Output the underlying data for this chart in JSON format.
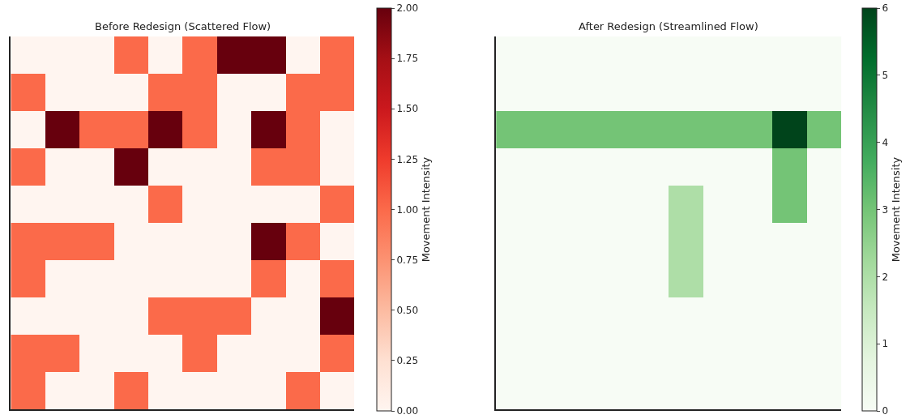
{
  "chart_data": [
    {
      "type": "heatmap",
      "title": "Before Redesign (Scattered Flow)",
      "clabel": "Movement Intensity",
      "categories": [
        null,
        null,
        null,
        null,
        null,
        null,
        null,
        null,
        null,
        null
      ],
      "y_categories": [
        null,
        null,
        null,
        null,
        null,
        null,
        null,
        null,
        null,
        null
      ],
      "cells": [
        [
          0,
          0,
          0,
          1,
          0,
          1,
          2,
          2,
          0,
          1
        ],
        [
          1,
          0,
          0,
          0,
          1,
          1,
          0,
          0,
          1,
          1
        ],
        [
          0,
          2,
          1,
          1,
          2,
          1,
          0,
          2,
          1,
          0
        ],
        [
          1,
          0,
          0,
          2,
          0,
          0,
          0,
          1,
          1,
          0
        ],
        [
          0,
          0,
          0,
          0,
          1,
          0,
          0,
          0,
          0,
          1
        ],
        [
          1,
          1,
          1,
          0,
          0,
          0,
          0,
          2,
          1,
          0
        ],
        [
          1,
          0,
          0,
          0,
          0,
          0,
          0,
          1,
          0,
          1
        ],
        [
          0,
          0,
          0,
          0,
          1,
          1,
          1,
          0,
          0,
          2
        ],
        [
          1,
          1,
          0,
          0,
          0,
          1,
          0,
          0,
          0,
          1
        ],
        [
          1,
          0,
          0,
          1,
          0,
          0,
          0,
          0,
          1,
          0
        ]
      ],
      "colors": [
        "#fff5f0",
        "#fee0d2",
        "#fcbba1",
        "#fc9272",
        "#fb6a4a",
        "#ef3b2c",
        "#cb181d",
        "#a50f15",
        "#67000d"
      ],
      "clim": [
        0,
        2
      ],
      "cticks": [
        {
          "value": 0,
          "label": "0.00"
        },
        0.25,
        {
          "value": 0.5,
          "label": "0.50"
        },
        0.75,
        {
          "value": 1,
          "label": "1.00"
        },
        1.25,
        {
          "value": 1.5,
          "label": "1.50"
        },
        1.75,
        {
          "value": 2,
          "label": "2.00"
        }
      ]
    },
    {
      "type": "heatmap",
      "title": "After Redesign (Streamlined Flow)",
      "clabel": "Movement Intensity",
      "categories": [
        null,
        null,
        null,
        null,
        null,
        null,
        null,
        null,
        null,
        null
      ],
      "y_categories": [
        null,
        null,
        null,
        null,
        null,
        null,
        null,
        null,
        null,
        null
      ],
      "cells": [
        [
          0,
          0,
          0,
          0,
          0,
          0,
          0,
          0,
          0,
          0
        ],
        [
          0,
          0,
          0,
          0,
          0,
          0,
          0,
          0,
          0,
          0
        ],
        [
          3,
          3,
          3,
          3,
          3,
          3,
          3,
          3,
          6,
          3
        ],
        [
          0,
          0,
          0,
          0,
          0,
          0,
          0,
          0,
          3,
          0
        ],
        [
          0,
          0,
          0,
          0,
          0,
          2,
          0,
          0,
          3,
          0
        ],
        [
          0,
          0,
          0,
          0,
          0,
          2,
          0,
          0,
          0,
          0
        ],
        [
          0,
          0,
          0,
          0,
          0,
          2,
          0,
          0,
          0,
          0
        ],
        [
          0,
          0,
          0,
          0,
          0,
          0,
          0,
          0,
          0,
          0
        ],
        [
          0,
          0,
          0,
          0,
          0,
          0,
          0,
          0,
          0,
          0
        ],
        [
          0,
          0,
          0,
          0,
          0,
          0,
          0,
          0,
          0,
          0
        ]
      ],
      "colors": [
        "#f7fcf5",
        "#e5f5e0",
        "#c7e9c0",
        "#a1d99b",
        "#74c476",
        "#41ab5d",
        "#238b45",
        "#006d2c",
        "#00441b"
      ],
      "clim": [
        0,
        6
      ],
      "cticks": [
        0,
        1,
        2,
        3,
        4,
        5,
        6
      ]
    }
  ]
}
